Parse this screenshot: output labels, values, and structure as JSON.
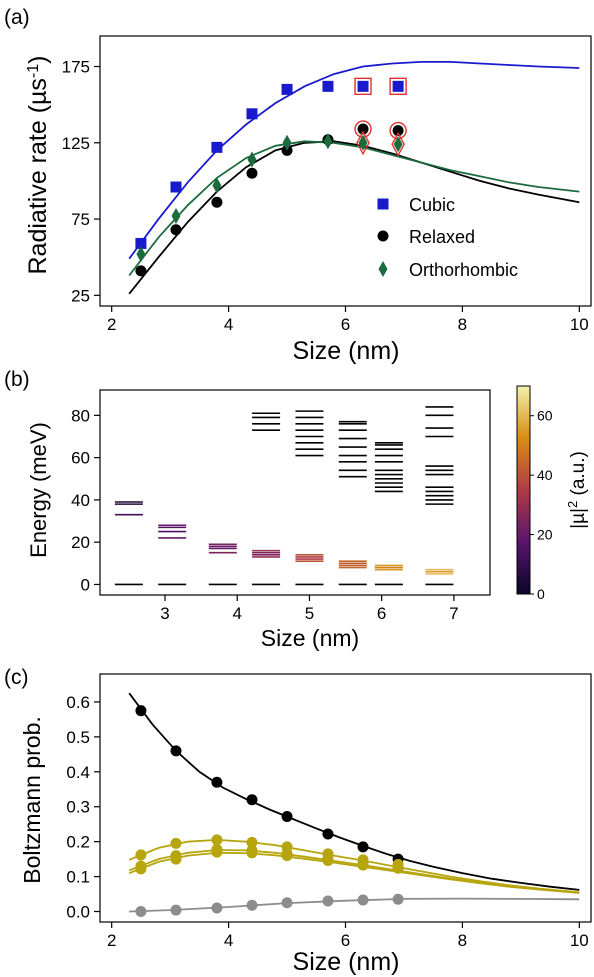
{
  "panels": {
    "a": {
      "label": "(a)"
    },
    "b": {
      "label": "(b)"
    },
    "c": {
      "label": "(c)"
    }
  },
  "chart_data": [
    {
      "panel": "(a)",
      "type": "scatter",
      "xlabel": "Size (nm)",
      "ylabel": "Radiative rate (µs⁻¹)",
      "ylabel_text": "Radiative rate",
      "ylabel_unit": "µs",
      "ylabel_sup": "-1",
      "xlim": [
        1.8,
        10.2
      ],
      "ylim": [
        18,
        195
      ],
      "xticks": [
        2,
        4,
        6,
        8,
        10
      ],
      "yticks": [
        25,
        75,
        125,
        175
      ],
      "legend_position": "right-center",
      "series": [
        {
          "name": "Cubic",
          "marker": "square",
          "color": "#1a1acd",
          "x": [
            2.5,
            3.1,
            3.8,
            4.4,
            5.0,
            5.7,
            6.3,
            6.9
          ],
          "y": [
            59,
            96,
            122,
            144,
            160,
            162,
            162,
            162
          ],
          "highlighted": [
            6.3,
            6.9
          ],
          "fit": {
            "x": [
              2.3,
              2.8,
              3.3,
              3.8,
              4.3,
              4.8,
              5.3,
              5.8,
              6.3,
              6.8,
              7.3,
              7.8,
              8.3,
              8.8,
              9.3,
              10.0
            ],
            "y": [
              49,
              75,
              99,
              120,
              137,
              151,
              162,
              170,
              175,
              177,
              178,
              178,
              177,
              176,
              175,
              174
            ]
          }
        },
        {
          "name": "Relaxed",
          "marker": "circle",
          "color": "#000000",
          "x": [
            2.5,
            3.1,
            3.8,
            4.4,
            5.0,
            5.7,
            6.3,
            6.9
          ],
          "y": [
            41,
            68,
            86,
            105,
            120,
            127,
            134,
            133
          ],
          "highlighted": [
            6.3,
            6.9
          ],
          "fit": {
            "x": [
              2.3,
              2.8,
              3.3,
              3.8,
              4.3,
              4.8,
              5.3,
              5.8,
              6.3,
              6.8,
              7.3,
              7.8,
              8.3,
              8.8,
              9.3,
              10.0
            ],
            "y": [
              26,
              50,
              73,
              93,
              109,
              120,
              125,
              126,
              123,
              118,
              112,
              106,
              100,
              95,
              91,
              86
            ]
          }
        },
        {
          "name": "Orthorhombic",
          "marker": "diamond",
          "color": "#1c6b3c",
          "x": [
            2.5,
            3.1,
            3.8,
            4.4,
            5.0,
            5.7,
            6.3,
            6.9
          ],
          "y": [
            52,
            77,
            97,
            114,
            125,
            126,
            125,
            124
          ],
          "highlighted": [
            6.3,
            6.9
          ],
          "fit": {
            "x": [
              2.3,
              2.8,
              3.3,
              3.8,
              4.3,
              4.8,
              5.3,
              5.8,
              6.3,
              6.8,
              7.3,
              7.8,
              8.3,
              8.8,
              9.3,
              10.0
            ],
            "y": [
              38,
              63,
              84,
              102,
              115,
              123,
              126,
              125,
              122,
              117,
              112,
              107,
              103,
              99,
              96,
              93
            ]
          }
        }
      ]
    },
    {
      "panel": "(b)",
      "type": "heatmap",
      "xlabel": "Size (nm)",
      "ylabel": "Energy (meV)",
      "xlim": [
        2.1,
        7.5
      ],
      "ylim": [
        -5,
        92
      ],
      "xticks": [
        3,
        4,
        5,
        6,
        7
      ],
      "yticks": [
        0,
        20,
        40,
        60,
        80
      ],
      "colorbar": {
        "label": "|μ|² (a.u.)",
        "label_text": "|µ|",
        "label_sup": "2",
        "label_unit": "(a.u.)",
        "min": 0,
        "max": 70,
        "ticks": [
          0,
          20,
          40,
          60
        ]
      },
      "levels": [
        {
          "x": 2.5,
          "energies": [
            0,
            33,
            38,
            39
          ],
          "intensities": [
            0,
            12,
            5,
            5
          ]
        },
        {
          "x": 3.1,
          "energies": [
            0,
            22,
            25,
            27,
            28
          ],
          "intensities": [
            0,
            20,
            15,
            15,
            20
          ]
        },
        {
          "x": 3.8,
          "energies": [
            0,
            15,
            17,
            18,
            19
          ],
          "intensities": [
            0,
            24,
            20,
            20,
            24
          ]
        },
        {
          "x": 4.4,
          "energies": [
            0,
            13,
            14,
            15,
            16,
            73,
            76,
            79,
            81
          ],
          "intensities": [
            0,
            30,
            25,
            25,
            30,
            null,
            null,
            null,
            null
          ]
        },
        {
          "x": 5.0,
          "energies": [
            0,
            11,
            12,
            13,
            14,
            61,
            64,
            67,
            70,
            73,
            76,
            79,
            82
          ],
          "intensities": [
            0,
            40,
            35,
            35,
            40,
            null,
            null,
            null,
            null,
            null,
            null,
            null,
            null
          ]
        },
        {
          "x": 5.6,
          "energies": [
            0,
            8,
            9,
            10,
            11,
            51,
            54,
            58,
            61,
            65,
            69,
            73,
            76,
            77
          ],
          "intensities": [
            0,
            45,
            42,
            42,
            45,
            null,
            null,
            null,
            null,
            null,
            null,
            null,
            null,
            null
          ]
        },
        {
          "x": 6.1,
          "energies": [
            0,
            7,
            8,
            9,
            44,
            46,
            48,
            50,
            52,
            54,
            58,
            61,
            64,
            66,
            67
          ],
          "intensities": [
            0,
            55,
            50,
            55,
            null,
            null,
            null,
            null,
            null,
            null,
            null,
            null,
            null,
            null,
            null
          ]
        },
        {
          "x": 6.8,
          "energies": [
            0,
            5,
            6,
            7,
            38,
            40,
            42,
            44,
            46,
            52,
            54,
            56,
            70,
            74,
            80,
            84
          ],
          "intensities": [
            0,
            60,
            55,
            60,
            null,
            null,
            null,
            null,
            null,
            null,
            null,
            null,
            null,
            null,
            null,
            null
          ]
        }
      ]
    },
    {
      "panel": "(c)",
      "type": "scatter",
      "xlabel": "Size (nm)",
      "ylabel": "Boltzmann prob.",
      "xlim": [
        1.8,
        10.2
      ],
      "ylim": [
        -0.03,
        0.68
      ],
      "xticks": [
        2,
        4,
        6,
        8,
        10
      ],
      "yticks": [
        0.0,
        0.1,
        0.2,
        0.3,
        0.4,
        0.5,
        0.6
      ],
      "series": [
        {
          "color": "#000000",
          "x": [
            2.5,
            3.1,
            3.8,
            4.4,
            5.0,
            5.7,
            6.3,
            6.9
          ],
          "y": [
            0.575,
            0.46,
            0.37,
            0.32,
            0.272,
            0.222,
            0.185,
            0.15
          ],
          "fit": {
            "x": [
              2.3,
              2.7,
              3.1,
              3.5,
              3.9,
              4.3,
              4.7,
              5.1,
              5.5,
              5.9,
              6.3,
              6.7,
              7.1,
              7.5,
              8.0,
              8.5,
              9.0,
              9.5,
              10.0
            ],
            "y": [
              0.625,
              0.535,
              0.46,
              0.4,
              0.355,
              0.322,
              0.292,
              0.265,
              0.238,
              0.212,
              0.188,
              0.165,
              0.145,
              0.128,
              0.11,
              0.094,
              0.082,
              0.071,
              0.062
            ]
          }
        },
        {
          "color": "#b6a50d",
          "x": [
            2.5,
            3.1,
            3.8,
            4.4,
            5.0,
            5.7,
            6.3,
            6.9
          ],
          "y": [
            0.162,
            0.195,
            0.205,
            0.198,
            0.185,
            0.165,
            0.148,
            0.135
          ],
          "fit": {
            "x": [
              2.3,
              2.8,
              3.3,
              3.8,
              4.3,
              4.8,
              5.3,
              5.8,
              6.3,
              6.8,
              7.3,
              7.8,
              8.3,
              8.8,
              9.3,
              10.0
            ],
            "y": [
              0.148,
              0.182,
              0.2,
              0.205,
              0.2,
              0.19,
              0.175,
              0.16,
              0.146,
              0.13,
              0.115,
              0.1,
              0.087,
              0.075,
              0.066,
              0.055
            ]
          }
        },
        {
          "color": "#b6a50d",
          "x": [
            2.5,
            3.1,
            3.8,
            4.4,
            5.0,
            5.7,
            6.3,
            6.9
          ],
          "y": [
            0.13,
            0.16,
            0.178,
            0.175,
            0.166,
            0.152,
            0.138,
            0.128
          ],
          "fit": {
            "x": [
              2.3,
              2.8,
              3.3,
              3.8,
              4.3,
              4.8,
              5.3,
              5.8,
              6.3,
              6.8,
              7.3,
              7.8,
              8.3,
              8.8,
              9.3,
              10.0
            ],
            "y": [
              0.118,
              0.15,
              0.168,
              0.176,
              0.175,
              0.168,
              0.157,
              0.145,
              0.133,
              0.12,
              0.107,
              0.094,
              0.083,
              0.072,
              0.064,
              0.054
            ]
          }
        },
        {
          "color": "#b6a50d",
          "x": [
            2.5,
            3.1,
            3.8,
            4.4,
            5.0,
            5.7,
            6.3,
            6.9
          ],
          "y": [
            0.122,
            0.15,
            0.17,
            0.168,
            0.16,
            0.146,
            0.133,
            0.124
          ],
          "fit": {
            "x": [
              2.3,
              2.8,
              3.3,
              3.8,
              4.3,
              4.8,
              5.3,
              5.8,
              6.3,
              6.8,
              7.3,
              7.8,
              8.3,
              8.8,
              9.3,
              10.0
            ],
            "y": [
              0.11,
              0.142,
              0.16,
              0.168,
              0.167,
              0.161,
              0.151,
              0.14,
              0.128,
              0.116,
              0.104,
              0.092,
              0.081,
              0.071,
              0.063,
              0.053
            ]
          }
        },
        {
          "color": "#8c8c8c",
          "x": [
            2.5,
            3.1,
            3.8,
            4.4,
            5.0,
            5.7,
            6.3,
            6.9
          ],
          "y": [
            0.0,
            0.004,
            0.01,
            0.018,
            0.025,
            0.03,
            0.033,
            0.035
          ],
          "fit": {
            "x": [
              2.3,
              3.0,
              4.0,
              5.0,
              6.0,
              7.0,
              8.0,
              9.0,
              10.0
            ],
            "y": [
              0.0,
              0.004,
              0.013,
              0.024,
              0.031,
              0.036,
              0.037,
              0.036,
              0.035
            ]
          }
        }
      ]
    }
  ]
}
